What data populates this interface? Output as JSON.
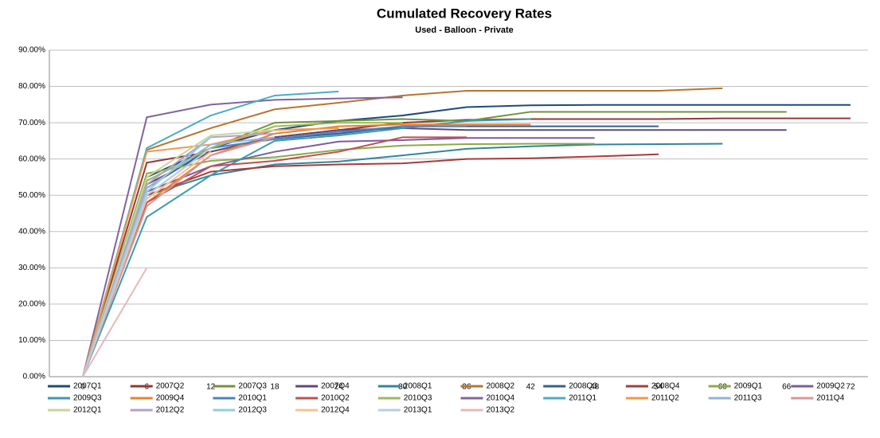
{
  "chart_data": {
    "type": "line",
    "title": "Cumulated Recovery Rates",
    "subtitle": "Used - Balloon - Private",
    "categories": [
      "0",
      "6",
      "12",
      "18",
      "24",
      "30",
      "36",
      "42",
      "48",
      "54",
      "60",
      "66",
      "72"
    ],
    "ylim": [
      0,
      90
    ],
    "yticks": [
      {
        "value": 0,
        "label": "0.00%"
      },
      {
        "value": 10,
        "label": "10.00%"
      },
      {
        "value": 20,
        "label": "20.00%"
      },
      {
        "value": 30,
        "label": "30.00%"
      },
      {
        "value": 40,
        "label": "40.00%"
      },
      {
        "value": 50,
        "label": "50.00%"
      },
      {
        "value": 60,
        "label": "60.00%"
      },
      {
        "value": 70,
        "label": "70.00%"
      },
      {
        "value": 80,
        "label": "80.00%"
      },
      {
        "value": 90,
        "label": "90.00%"
      }
    ],
    "grid": true,
    "legend": "bottom",
    "series": [
      {
        "name": "2007Q1",
        "color": "#1F497D",
        "values": [
          0,
          55,
          63,
          68,
          70.5,
          72,
          74.3,
          74.8,
          74.9,
          74.9,
          74.9,
          74.9,
          74.9
        ]
      },
      {
        "name": "2007Q2",
        "color": "#953735",
        "values": [
          0,
          59,
          62,
          66,
          68,
          70,
          70.8,
          71,
          71,
          71,
          71.2,
          71.2,
          71.2
        ]
      },
      {
        "name": "2007Q3",
        "color": "#76923C",
        "values": [
          0,
          54,
          63,
          70,
          70.5,
          71,
          70.5,
          73,
          73,
          73,
          73,
          73,
          null
        ]
      },
      {
        "name": "2007Q4",
        "color": "#5F497A",
        "values": [
          0,
          53,
          62,
          66,
          68,
          68.5,
          68,
          68,
          68,
          68,
          68,
          68,
          null
        ]
      },
      {
        "name": "2008Q1",
        "color": "#31859C",
        "values": [
          0,
          50,
          55.5,
          58.5,
          59.3,
          61,
          62.8,
          63.5,
          64,
          64.1,
          64.2,
          null,
          null
        ]
      },
      {
        "name": "2008Q2",
        "color": "#B7752E",
        "values": [
          0,
          62.5,
          68.5,
          73.7,
          75.5,
          77.5,
          78.8,
          78.8,
          78.8,
          78.8,
          79.5,
          null,
          null
        ]
      },
      {
        "name": "2008Q3",
        "color": "#366092",
        "values": [
          0,
          52,
          63,
          65.5,
          67,
          69,
          69,
          69,
          69,
          69,
          null,
          null,
          null
        ]
      },
      {
        "name": "2008Q4",
        "color": "#A73C3A",
        "values": [
          0,
          50,
          56.5,
          58,
          58.5,
          58.8,
          60,
          60.2,
          60.7,
          61.3,
          null,
          null,
          null
        ]
      },
      {
        "name": "2009Q1",
        "color": "#8AAC46",
        "values": [
          0,
          56,
          59.5,
          60.5,
          62.5,
          63.7,
          64.1,
          64.2,
          64.2,
          null,
          null,
          null,
          null
        ]
      },
      {
        "name": "2009Q2",
        "color": "#7D5B9E",
        "values": [
          0,
          51,
          58,
          62,
          64.8,
          65.2,
          65.8,
          65.8,
          65.8,
          null,
          null,
          null,
          null
        ]
      },
      {
        "name": "2009Q3",
        "color": "#3A9AB0",
        "values": [
          0,
          44,
          55.5,
          65,
          66.5,
          68.5,
          70.5,
          71,
          null,
          null,
          null,
          null,
          null
        ]
      },
      {
        "name": "2009Q4",
        "color": "#E8822E",
        "values": [
          0,
          48,
          61,
          67,
          69,
          69.5,
          69.5,
          69.5,
          null,
          null,
          null,
          null,
          null
        ]
      },
      {
        "name": "2010Q1",
        "color": "#4F81BD",
        "values": [
          0,
          50,
          63,
          65.5,
          67.5,
          69,
          69,
          null,
          null,
          null,
          null,
          null,
          null
        ]
      },
      {
        "name": "2010Q2",
        "color": "#C0504D",
        "values": [
          0,
          48,
          58,
          59.5,
          62,
          66,
          66,
          null,
          null,
          null,
          null,
          null,
          null
        ]
      },
      {
        "name": "2010Q3",
        "color": "#9BBB59",
        "values": [
          0,
          54,
          63,
          69,
          70,
          70,
          null,
          null,
          null,
          null,
          null,
          null,
          null
        ]
      },
      {
        "name": "2010Q4",
        "color": "#8064A2",
        "values": [
          0,
          71.5,
          75,
          76.3,
          76.7,
          77,
          null,
          null,
          null,
          null,
          null,
          null,
          null
        ]
      },
      {
        "name": "2011Q1",
        "color": "#4BACC6",
        "values": [
          0,
          63,
          72,
          77.5,
          78.6,
          null,
          null,
          null,
          null,
          null,
          null,
          null,
          null
        ]
      },
      {
        "name": "2011Q2",
        "color": "#F79646",
        "values": [
          0,
          62,
          64,
          68,
          68.5,
          null,
          null,
          null,
          null,
          null,
          null,
          null,
          null
        ]
      },
      {
        "name": "2011Q3",
        "color": "#95B3D7",
        "values": [
          0,
          52,
          64,
          66,
          null,
          null,
          null,
          null,
          null,
          null,
          null,
          null,
          null
        ]
      },
      {
        "name": "2011Q4",
        "color": "#D99694",
        "values": [
          0,
          47,
          61,
          66,
          null,
          null,
          null,
          null,
          null,
          null,
          null,
          null,
          null
        ]
      },
      {
        "name": "2012Q1",
        "color": "#C3D69B",
        "values": [
          0,
          55,
          66.5,
          68,
          null,
          null,
          null,
          null,
          null,
          null,
          null,
          null,
          null
        ]
      },
      {
        "name": "2012Q2",
        "color": "#B3A2C7",
        "values": [
          0,
          53,
          66,
          67,
          null,
          null,
          null,
          null,
          null,
          null,
          null,
          null,
          null
        ]
      },
      {
        "name": "2012Q3",
        "color": "#93CDDD",
        "values": [
          0,
          51,
          66,
          null,
          null,
          null,
          null,
          null,
          null,
          null,
          null,
          null,
          null
        ]
      },
      {
        "name": "2012Q4",
        "color": "#FAC090",
        "values": [
          0,
          49,
          62,
          null,
          null,
          null,
          null,
          null,
          null,
          null,
          null,
          null,
          null
        ]
      },
      {
        "name": "2013Q1",
        "color": "#B9CDE5",
        "values": [
          0,
          50,
          63,
          null,
          null,
          null,
          null,
          null,
          null,
          null,
          null,
          null,
          null
        ]
      },
      {
        "name": "2013Q2",
        "color": "#E6B9B8",
        "values": [
          0,
          30,
          null,
          null,
          null,
          null,
          null,
          null,
          null,
          null,
          null,
          null,
          null
        ]
      }
    ]
  }
}
